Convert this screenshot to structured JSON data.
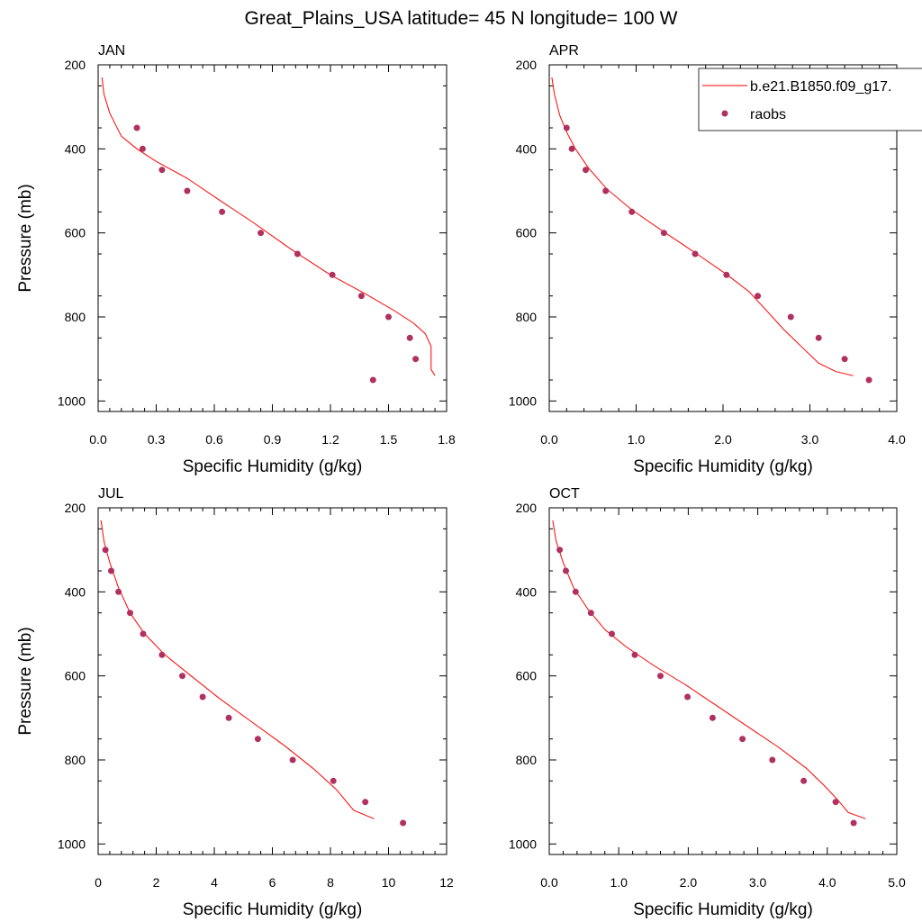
{
  "figure": {
    "title": "Great_Plains_USA  latitude= 45 N longitude= 100 W"
  },
  "legend": {
    "model_label": "b.e21.B1850.f09_g17.",
    "obs_label": "raobs",
    "placement": "top-right of APR panel"
  },
  "colors": {
    "model_line": "#ff0000",
    "obs_marker": "#b03060",
    "axes": "#000000"
  },
  "chart_data": [
    {
      "type": "scatter",
      "panel": "JAN",
      "title": "JAN",
      "xlabel": "Specific Humidity (g/kg)",
      "ylabel": "Pressure (mb)",
      "xlim": [
        0,
        1.8
      ],
      "ylim": [
        200,
        1025
      ],
      "y_reversed": true,
      "xticks": [
        "0.0",
        "0.3",
        "0.6",
        "0.9",
        "1.2",
        "1.5",
        "1.8"
      ],
      "yticks": [
        "200",
        "400",
        "600",
        "800",
        "1000"
      ],
      "series": [
        {
          "name": "b.e21.B1850.f09_g17.",
          "style": "line",
          "x": [
            0.02,
            0.03,
            0.06,
            0.12,
            0.2,
            0.3,
            0.46,
            0.62,
            0.8,
            1.0,
            1.2,
            1.38,
            1.53,
            1.63,
            1.69,
            1.72,
            1.72,
            1.74
          ],
          "y": [
            230,
            270,
            315,
            370,
            400,
            430,
            470,
            520,
            575,
            640,
            700,
            745,
            785,
            815,
            840,
            870,
            925,
            940
          ]
        },
        {
          "name": "raobs",
          "style": "points",
          "x": [
            0.2,
            0.23,
            0.33,
            0.46,
            0.64,
            0.84,
            1.03,
            1.21,
            1.36,
            1.5,
            1.61,
            1.64,
            1.42
          ],
          "y": [
            350,
            400,
            450,
            500,
            550,
            600,
            650,
            700,
            750,
            800,
            850,
            900,
            950
          ]
        }
      ]
    },
    {
      "type": "scatter",
      "panel": "APR",
      "title": "APR",
      "xlabel": "Specific Humidity (g/kg)",
      "ylabel": "",
      "xlim": [
        0,
        4.0
      ],
      "ylim": [
        200,
        1025
      ],
      "y_reversed": true,
      "xticks": [
        "0.0",
        "1.0",
        "2.0",
        "3.0",
        "4.0"
      ],
      "yticks": [
        "200",
        "400",
        "600",
        "800",
        "1000"
      ],
      "series": [
        {
          "name": "b.e21.B1850.f09_g17.",
          "style": "line",
          "x": [
            0.03,
            0.06,
            0.12,
            0.2,
            0.3,
            0.45,
            0.66,
            0.95,
            1.3,
            1.7,
            2.05,
            2.3,
            2.48,
            2.7,
            2.9,
            3.1,
            3.3,
            3.5
          ],
          "y": [
            230,
            270,
            320,
            360,
            400,
            445,
            495,
            545,
            595,
            650,
            700,
            740,
            780,
            830,
            870,
            910,
            930,
            940
          ]
        },
        {
          "name": "raobs",
          "style": "points",
          "x": [
            0.2,
            0.26,
            0.42,
            0.65,
            0.95,
            1.32,
            1.68,
            2.04,
            2.4,
            2.78,
            3.1,
            3.4,
            3.68
          ],
          "y": [
            350,
            400,
            450,
            500,
            550,
            600,
            650,
            700,
            750,
            800,
            850,
            900,
            950
          ]
        }
      ]
    },
    {
      "type": "scatter",
      "panel": "JUL",
      "title": "JUL",
      "xlabel": "Specific Humidity (g/kg)",
      "ylabel": "Pressure (mb)",
      "xlim": [
        0,
        12
      ],
      "ylim": [
        200,
        1025
      ],
      "y_reversed": true,
      "xticks": [
        "0",
        "2",
        "4",
        "6",
        "8",
        "10",
        "12"
      ],
      "yticks": [
        "200",
        "400",
        "600",
        "800",
        "1000"
      ],
      "series": [
        {
          "name": "b.e21.B1850.f09_g17.",
          "style": "line",
          "x": [
            0.1,
            0.2,
            0.4,
            0.7,
            1.1,
            1.6,
            2.3,
            3.2,
            4.2,
            5.3,
            6.4,
            7.4,
            8.2,
            8.8,
            9.5
          ],
          "y": [
            230,
            280,
            330,
            390,
            450,
            500,
            550,
            600,
            655,
            710,
            765,
            820,
            870,
            920,
            940
          ]
        },
        {
          "name": "raobs",
          "style": "points",
          "x": [
            0.25,
            0.45,
            0.7,
            1.1,
            1.55,
            2.2,
            2.9,
            3.6,
            4.5,
            5.5,
            6.7,
            8.1,
            9.2,
            10.5
          ],
          "y": [
            300,
            350,
            400,
            450,
            500,
            550,
            600,
            650,
            700,
            750,
            800,
            850,
            900,
            950
          ]
        }
      ]
    },
    {
      "type": "scatter",
      "panel": "OCT",
      "title": "OCT",
      "xlabel": "Specific Humidity (g/kg)",
      "ylabel": "",
      "xlim": [
        0,
        5.0
      ],
      "ylim": [
        200,
        1025
      ],
      "y_reversed": true,
      "xticks": [
        "0.0",
        "1.0",
        "2.0",
        "3.0",
        "4.0",
        "5.0"
      ],
      "yticks": [
        "200",
        "400",
        "600",
        "800",
        "1000"
      ],
      "series": [
        {
          "name": "b.e21.B1850.f09_g17.",
          "style": "line",
          "x": [
            0.05,
            0.1,
            0.2,
            0.35,
            0.55,
            0.8,
            1.1,
            1.5,
            1.95,
            2.4,
            2.85,
            3.3,
            3.7,
            3.95,
            4.15,
            4.3,
            4.55
          ],
          "y": [
            230,
            280,
            330,
            390,
            440,
            490,
            530,
            575,
            620,
            670,
            720,
            770,
            820,
            860,
            895,
            925,
            940
          ]
        },
        {
          "name": "raobs",
          "style": "points",
          "x": [
            0.15,
            0.24,
            0.38,
            0.6,
            0.9,
            1.23,
            1.6,
            1.99,
            2.35,
            2.78,
            3.21,
            3.66,
            4.12,
            4.38
          ],
          "y": [
            300,
            350,
            400,
            450,
            500,
            550,
            600,
            650,
            700,
            750,
            800,
            850,
            900,
            950
          ]
        }
      ]
    }
  ]
}
